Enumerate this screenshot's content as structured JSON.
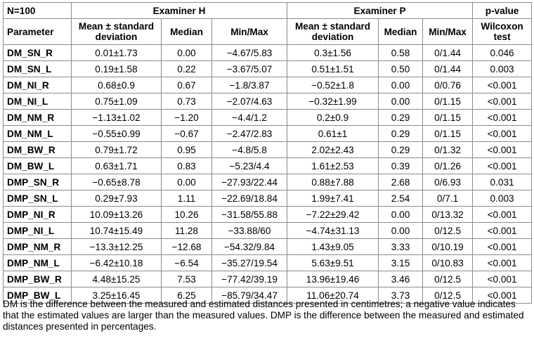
{
  "header": {
    "n_label": "N=100",
    "group_h": "Examiner H",
    "group_p": "Examiner P",
    "pvalue_label": "p-value"
  },
  "subheader": {
    "parameter": "Parameter",
    "h_mean": "Mean ± standard deviation",
    "h_median": "Median",
    "h_minmax": "Min/Max",
    "p_mean": "Mean ± standard deviation",
    "p_median": "Median",
    "p_minmax": "Min/Max",
    "test": "Wilcoxon test"
  },
  "rows": [
    [
      "DM_SN_R",
      "0.01±1.73",
      "0.00",
      "−4.67/5.83",
      "0.3±1.56",
      "0.58",
      "0/1.44",
      "0.046"
    ],
    [
      "DM_SN_L",
      "0.19±1.58",
      "0.22",
      "−3.67/5.07",
      "0.51±1.51",
      "0.50",
      "0/1.44",
      "0.003"
    ],
    [
      "DM_NI_R",
      "0.68±0.9",
      "0.67",
      "−1.8/3.87",
      "−0.52±1.8",
      "0.00",
      "0/0.76",
      "<0.001"
    ],
    [
      "DM_NI_L",
      "0.75±1.09",
      "0.73",
      "−2.07/4.63",
      "−0.32±1.99",
      "0.00",
      "0/1.15",
      "<0.001"
    ],
    [
      "DM_NM_R",
      "−1.13±1.02",
      "−1.20",
      "−4.4/1.2",
      "0.2±0.9",
      "0.29",
      "0/1.15",
      "<0.001"
    ],
    [
      "DM_NM_L",
      "−0.55±0.99",
      "−0.67",
      "−2.47/2.83",
      "0.61±1",
      "0.29",
      "0/1.15",
      "<0.001"
    ],
    [
      "DM_BW_R",
      "0.79±1.72",
      "0.95",
      "−4.8/5.8",
      "2.02±2.43",
      "0.29",
      "0/1.32",
      "<0.001"
    ],
    [
      "DM_BW_L",
      "0.63±1.71",
      "0.83",
      "−5.23/4.4",
      "1.61±2.53",
      "0.39",
      "0/1.26",
      "<0.001"
    ],
    [
      "DMP_SN_R",
      "−0.65±8.78",
      "0.00",
      "−27.93/22.44",
      "0.88±7.88",
      "2.68",
      "0/6.93",
      "0.031"
    ],
    [
      "DMP_SN_L",
      "0.29±7.93",
      "1.11",
      "−22.69/18.84",
      "1.99±7.41",
      "2.54",
      "0/7.1",
      "0.003"
    ],
    [
      "DMP_NI_R",
      "10.09±13.26",
      "10.26",
      "−31.58/55.88",
      "−7.22±29.42",
      "0.00",
      "0/13.32",
      "<0.001"
    ],
    [
      "DMP_NI_L",
      "10.74±15.49",
      "11.28",
      "−33.88/60",
      "−4.74±31.13",
      "0.00",
      "0/12.5",
      "<0.001"
    ],
    [
      "DMP_NM_R",
      "−13.3±12.25",
      "−12.68",
      "−54.32/9.84",
      "1.43±9.05",
      "3.33",
      "0/10.19",
      "<0.001"
    ],
    [
      "DMP_NM_L",
      "−6.42±10.18",
      "−6.54",
      "−35.27/19.54",
      "5.63±9.51",
      "3.15",
      "0/10.83",
      "<0.001"
    ],
    [
      "DMP_BW_R",
      "4.48±15.25",
      "7.53",
      "−77.42/39.19",
      "13.96±19.46",
      "3.46",
      "0/12.5",
      "<0.001"
    ],
    [
      "DMP_BW_L",
      "3.25±16.45",
      "6.25",
      "−85.79/34.47",
      "11.06±20.74",
      "3.73",
      "0/12.5",
      "<0.001"
    ]
  ],
  "note": "DM is the difference between the measured and estimated distances presented in centimetres; a negative value indicates that the estimated values are larger than the measured values. DMP is the difference between the measured and estimated distances presented in percentages."
}
